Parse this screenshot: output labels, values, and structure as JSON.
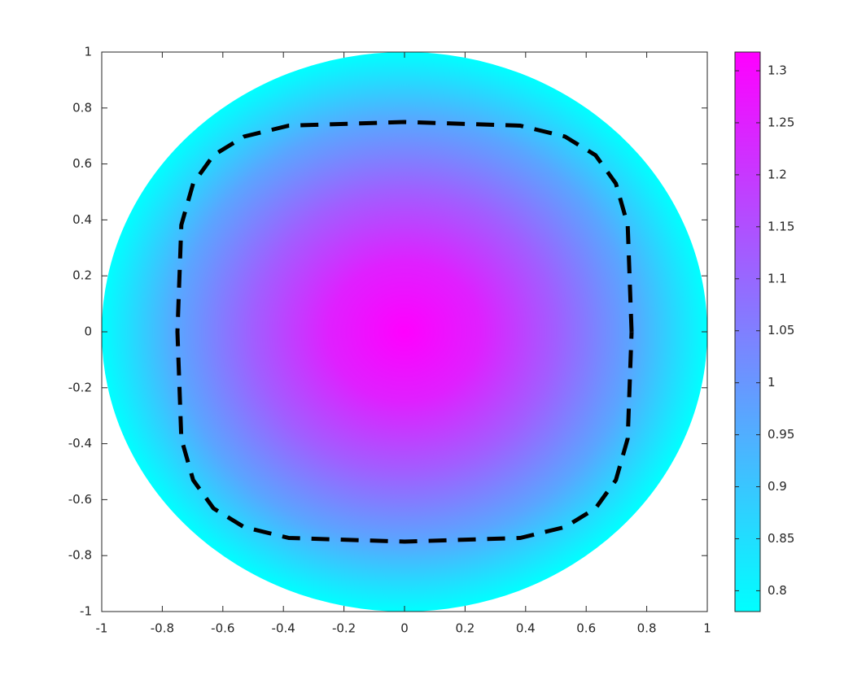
{
  "chart_data": {
    "type": "contour",
    "xlim": [
      -1,
      1
    ],
    "ylim": [
      -1,
      1
    ],
    "xticks": [
      -1,
      -0.8,
      -0.6,
      -0.4,
      -0.2,
      0,
      0.2,
      0.4,
      0.6,
      0.8,
      1
    ],
    "yticks": [
      -1,
      -0.8,
      -0.6,
      -0.4,
      -0.2,
      0,
      0.2,
      0.4,
      0.6,
      0.8,
      1
    ],
    "colormap": [
      "#00ffff",
      "#ff00ff"
    ],
    "clim": [
      0.78,
      1.318
    ],
    "cticks": [
      0.8,
      0.85,
      0.9,
      0.95,
      1,
      1.05,
      1.1,
      1.15,
      1.2,
      1.25,
      1.3
    ],
    "field": {
      "r": [
        0,
        0.25,
        0.5,
        0.75,
        1
      ],
      "values": [
        1.318,
        1.25,
        1.12,
        0.97,
        0.78
      ]
    },
    "contour": {
      "color": "#000000",
      "x": [
        0.75,
        0.737,
        0.698,
        0.631,
        0.53,
        0.382,
        0,
        -0.382,
        -0.53,
        -0.631,
        -0.698,
        -0.737,
        -0.75,
        -0.737,
        -0.698,
        -0.631,
        -0.53,
        -0.382,
        0,
        0.382,
        0.53,
        0.631,
        0.698,
        0.737,
        0.75
      ],
      "y": [
        0,
        0.382,
        0.53,
        0.631,
        0.698,
        0.737,
        0.75,
        0.737,
        0.698,
        0.631,
        0.53,
        0.382,
        0,
        -0.382,
        -0.53,
        -0.631,
        -0.698,
        -0.737,
        -0.75,
        -0.737,
        -0.698,
        -0.631,
        -0.53,
        -0.382,
        0
      ]
    }
  }
}
